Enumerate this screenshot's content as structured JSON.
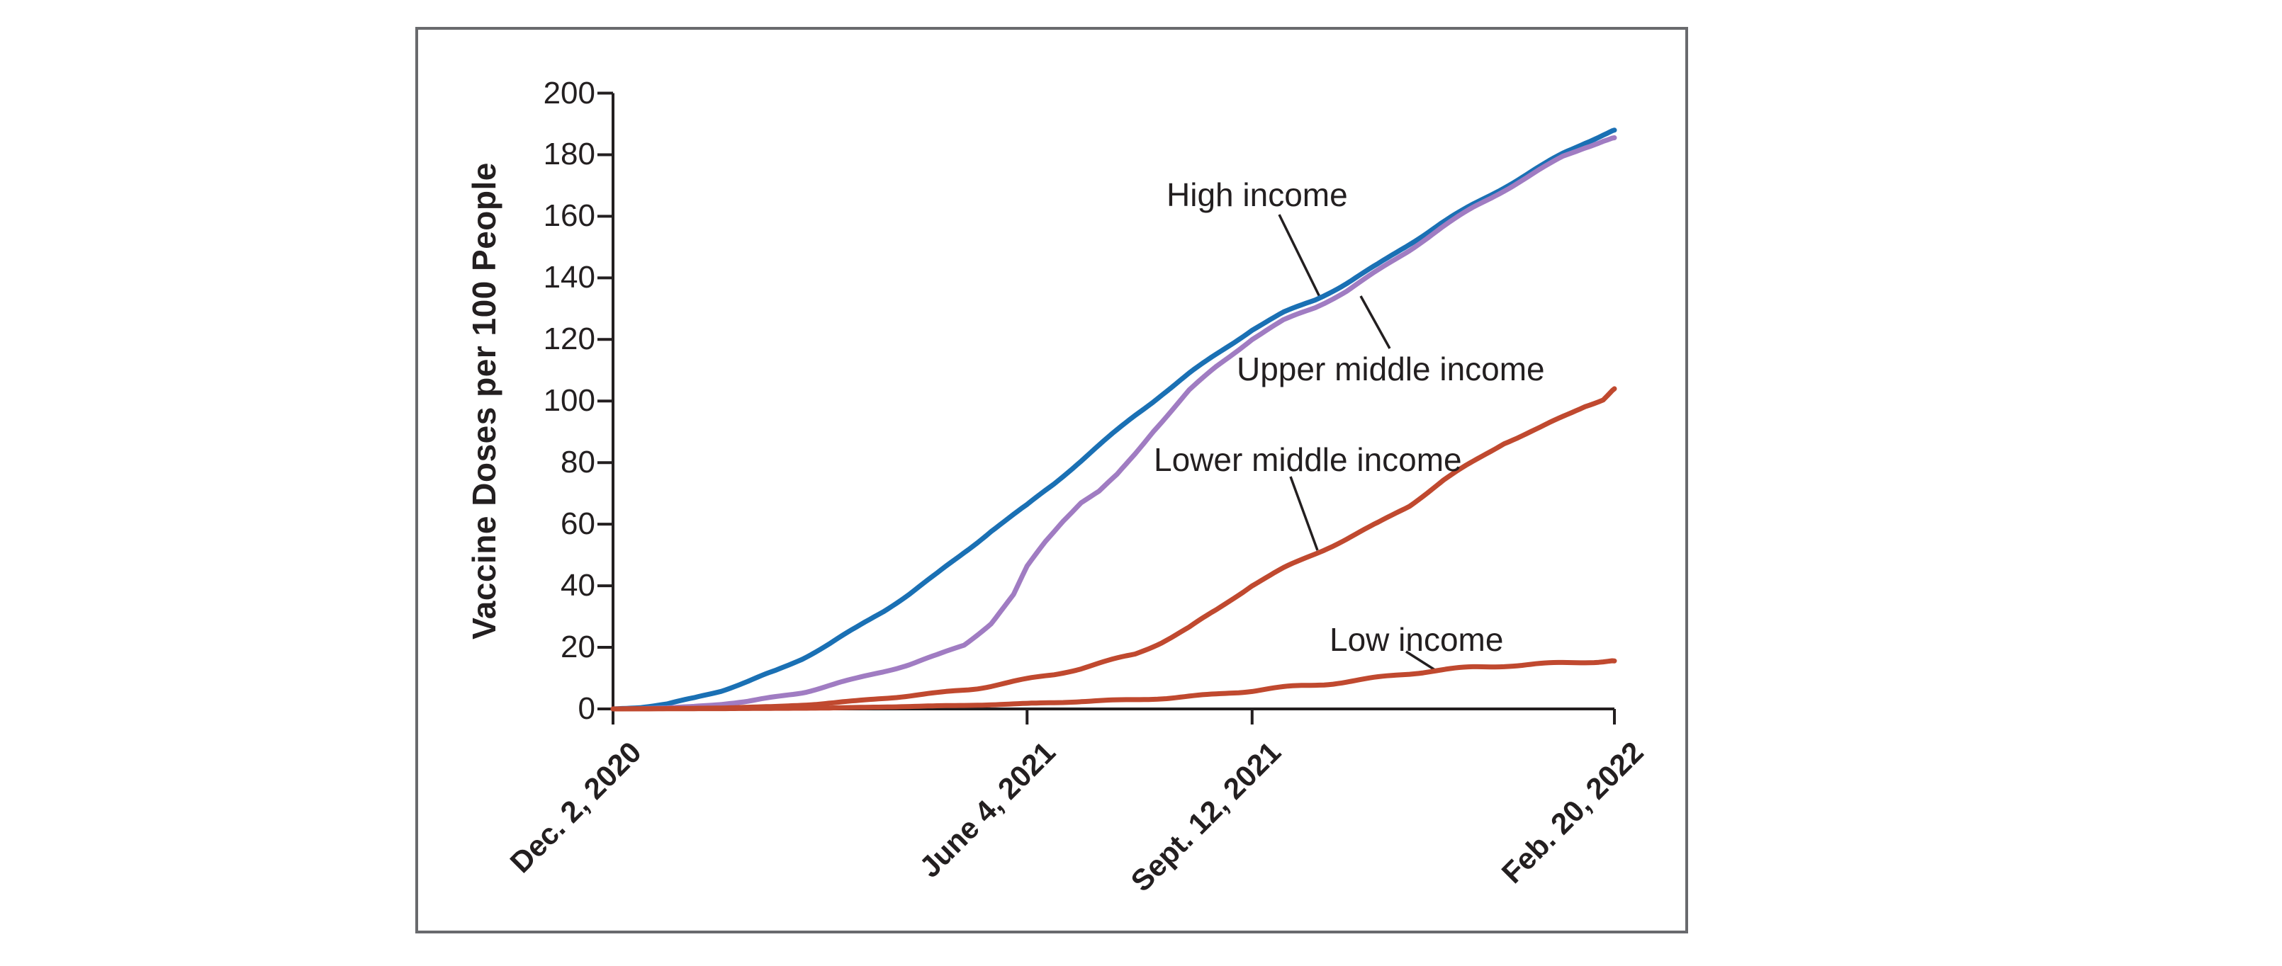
{
  "figure": {
    "background_color": "#ffffff",
    "frame_border_color": "#696a6d",
    "axis_color": "#231f20",
    "text_color": "#231f20"
  },
  "chart_data": {
    "type": "line",
    "title": "",
    "xlabel": "",
    "ylabel": "Vaccine Doses per 100 People",
    "ylim": [
      0,
      200
    ],
    "grid": false,
    "legend_position": "inline-annotations",
    "y_ticks": [
      0,
      20,
      40,
      60,
      80,
      100,
      120,
      140,
      160,
      180,
      200
    ],
    "x_tick_labels": [
      "Dec. 2, 2020",
      "June 4, 2021",
      "Sept. 12, 2021",
      "Feb. 20, 2022"
    ],
    "x_tick_days": [
      0,
      184,
      284,
      445
    ],
    "x_range_days": [
      0,
      445
    ],
    "series": [
      {
        "name": "High income",
        "color": "#1a70b4",
        "x_days": [
          0,
          12,
          24,
          36,
          48,
          60,
          72,
          84,
          96,
          108,
          120,
          132,
          144,
          156,
          168,
          184,
          196,
          208,
          220,
          232,
          244,
          256,
          268,
          284,
          298,
          312,
          326,
          340,
          354,
          368,
          382,
          396,
          410,
          422,
          432,
          440,
          445
        ],
        "values": [
          0,
          0.4,
          1.5,
          3.5,
          6,
          9,
          12.5,
          16.5,
          21,
          26,
          31.5,
          37.5,
          44,
          51,
          58,
          66,
          73,
          80.5,
          88,
          95.5,
          102.5,
          109,
          115,
          123,
          128.5,
          133,
          138.5,
          144.5,
          151,
          157.5,
          163.5,
          169.5,
          175.5,
          180.5,
          184,
          186.5,
          188
        ]
      },
      {
        "name": "Upper middle income",
        "color": "#a07cc2",
        "x_days": [
          0,
          12,
          24,
          36,
          48,
          60,
          72,
          84,
          96,
          108,
          120,
          132,
          144,
          156,
          168,
          178,
          184,
          192,
          200,
          208,
          216,
          224,
          232,
          240,
          248,
          256,
          268,
          284,
          298,
          312,
          326,
          340,
          354,
          368,
          382,
          396,
          410,
          422,
          432,
          440,
          445
        ],
        "values": [
          0,
          0.1,
          0.3,
          0.8,
          1.5,
          2.5,
          4,
          5.5,
          7.5,
          9.5,
          12,
          14.5,
          17.5,
          21,
          28,
          37,
          46,
          54,
          61,
          67,
          70.5,
          76,
          83,
          90.5,
          97,
          103.5,
          111,
          120,
          126,
          130.5,
          136,
          142.5,
          149,
          156,
          162.5,
          168.5,
          174.5,
          179.5,
          182.5,
          184.5,
          185.5
        ]
      },
      {
        "name": "Lower middle income",
        "color": "#c0492f",
        "x_days": [
          0,
          24,
          48,
          72,
          90,
          108,
          126,
          144,
          162,
          184,
          196,
          208,
          220,
          232,
          244,
          256,
          268,
          284,
          298,
          312,
          326,
          340,
          354,
          369,
          382,
          396,
          404,
          412,
          422,
          432,
          440,
          445
        ],
        "values": [
          0,
          0.1,
          0.3,
          0.8,
          1.5,
          2.5,
          3.8,
          5.2,
          7,
          9.5,
          11,
          13,
          15.5,
          18,
          22,
          26.5,
          32,
          40,
          45.5,
          50.5,
          55.5,
          60.5,
          66,
          74,
          80,
          86.5,
          89,
          91.5,
          95,
          98.5,
          100.5,
          104
        ]
      },
      {
        "name": "Low income",
        "color": "#c0492f",
        "x_days": [
          0,
          48,
          96,
          120,
          144,
          168,
          184,
          200,
          216,
          232,
          248,
          264,
          284,
          300,
          316,
          332,
          348,
          366,
          382,
          398,
          412,
          426,
          438,
          445
        ],
        "values": [
          0,
          0.1,
          0.3,
          0.6,
          1,
          1.4,
          1.7,
          2.1,
          2.6,
          3.1,
          3.7,
          4.5,
          5.7,
          7,
          8.2,
          9.6,
          11,
          12.3,
          13.3,
          14.2,
          14.8,
          15.2,
          15.4,
          15.6
        ]
      }
    ]
  }
}
